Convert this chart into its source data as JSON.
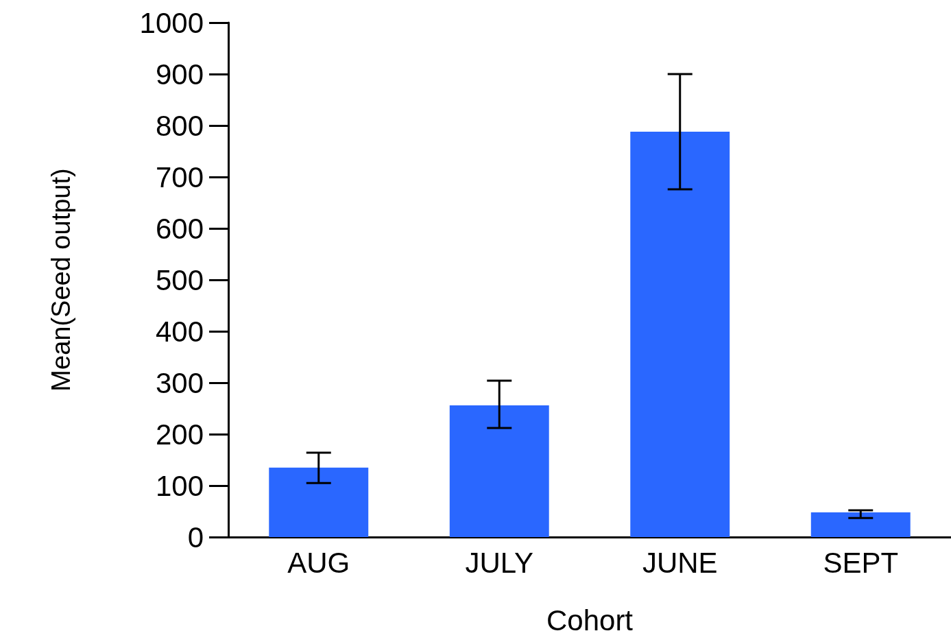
{
  "chart_data": {
    "type": "bar",
    "xlabel": "Cohort",
    "ylabel": "Mean(Seed output)",
    "categories": [
      "AUG",
      "JULY",
      "JUNE",
      "SEPT"
    ],
    "values": [
      135,
      256,
      788,
      48
    ],
    "errors": [
      [
        105,
        164
      ],
      [
        212,
        304
      ],
      [
        676,
        900
      ],
      [
        37,
        52
      ]
    ],
    "color": "#2a67ff",
    "ylim": [
      0,
      1000
    ],
    "yticks": [
      0,
      100,
      200,
      300,
      400,
      500,
      600,
      700,
      800,
      900,
      1000
    ],
    "grid": false
  }
}
